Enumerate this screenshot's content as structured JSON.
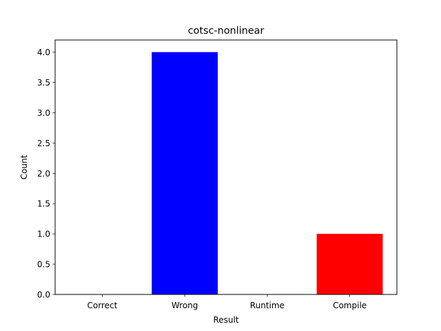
{
  "chart_data": {
    "type": "bar",
    "title": "cotsc-nonlinear",
    "xlabel": "Result",
    "ylabel": "Count",
    "categories": [
      "Correct",
      "Wrong",
      "Runtime",
      "Compile"
    ],
    "values": [
      0,
      4,
      0,
      1
    ],
    "colors": [
      "#0000ff",
      "#0000ff",
      "#ffa500",
      "#ff0000"
    ],
    "ylim": [
      0,
      4.2
    ],
    "yticks": [
      "0.0",
      "0.5",
      "1.0",
      "1.5",
      "2.0",
      "2.5",
      "3.0",
      "3.5",
      "4.0"
    ],
    "grid": false,
    "legend": false
  }
}
